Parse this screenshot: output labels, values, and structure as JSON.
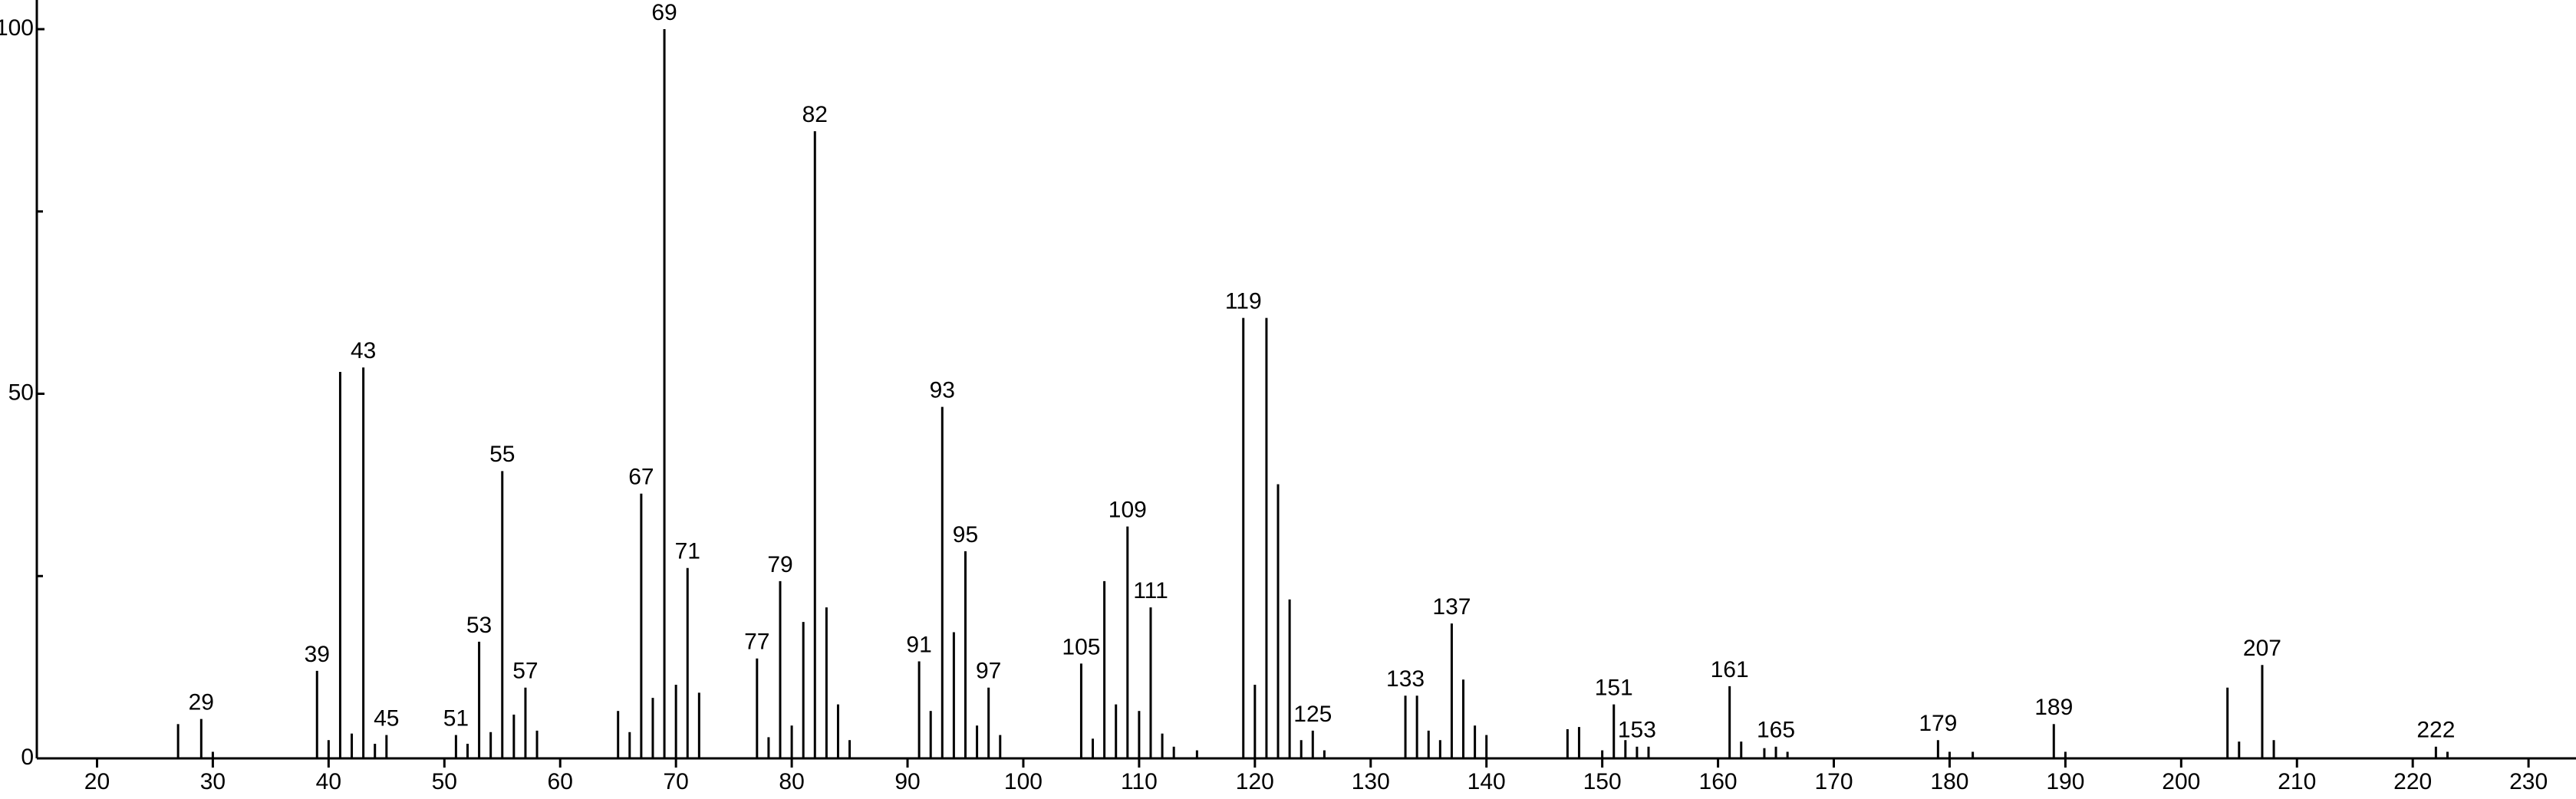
{
  "chart_data": {
    "type": "stem",
    "color": "#000000",
    "x": [
      27,
      29,
      30,
      39,
      40,
      41,
      42,
      43,
      44,
      45,
      51,
      52,
      53,
      54,
      55,
      56,
      57,
      58,
      65,
      66,
      67,
      68,
      69,
      70,
      71,
      72,
      77,
      78,
      79,
      80,
      81,
      82,
      83,
      84,
      85,
      91,
      92,
      93,
      94,
      95,
      96,
      97,
      98,
      105,
      106,
      107,
      108,
      109,
      110,
      111,
      112,
      113,
      115,
      119,
      120,
      121,
      122,
      123,
      124,
      125,
      126,
      133,
      134,
      135,
      136,
      137,
      138,
      139,
      140,
      147,
      148,
      150,
      151,
      152,
      153,
      154,
      161,
      162,
      164,
      165,
      166,
      179,
      180,
      182,
      189,
      190,
      204,
      205,
      207,
      208,
      222,
      223
    ],
    "values": [
      4.7,
      5.4,
      0.9,
      12,
      2.5,
      53,
      3.4,
      53.6,
      2,
      3.2,
      3.2,
      2,
      16,
      3.6,
      39.4,
      6,
      9.7,
      3.8,
      6.5,
      3.6,
      36.3,
      8.3,
      100,
      10.1,
      26.1,
      9,
      13.7,
      2.9,
      24.3,
      4.5,
      18.7,
      86,
      20.7,
      7.4,
      2.5,
      13.3,
      6.5,
      48.2,
      17.3,
      28.4,
      4.5,
      9.7,
      3.2,
      13,
      2.7,
      24.3,
      7.4,
      31.8,
      6.5,
      20.7,
      3.4,
      1.6,
      1.1,
      60.4,
      10.1,
      60.4,
      37.6,
      21.8,
      2.5,
      3.8,
      1.1,
      8.6,
      8.6,
      3.8,
      2.5,
      18.5,
      10.8,
      4.5,
      3.2,
      4,
      4.3,
      1.1,
      7.4,
      2.5,
      1.6,
      1.6,
      9.9,
      2.3,
      1.4,
      1.6,
      0.9,
      2.5,
      0.9,
      0.9,
      4.7,
      0.9,
      9.7,
      2.3,
      12.8,
      2.5,
      1.6,
      0.9
    ],
    "annotations": [
      29,
      39,
      43,
      45,
      51,
      53,
      55,
      57,
      67,
      69,
      71,
      77,
      79,
      82,
      91,
      93,
      95,
      97,
      105,
      109,
      111,
      119,
      125,
      133,
      137,
      151,
      153,
      161,
      165,
      179,
      189,
      207,
      222
    ],
    "xlim": [
      14.8,
      234.1
    ],
    "xticks": [
      20,
      30,
      40,
      50,
      60,
      70,
      80,
      90,
      100,
      110,
      120,
      130,
      140,
      150,
      160,
      170,
      180,
      190,
      200,
      210,
      220,
      230
    ],
    "ylim": [
      0,
      104
    ],
    "yticks": [
      0,
      50,
      100
    ],
    "minor_yticks": [
      25,
      75
    ]
  }
}
